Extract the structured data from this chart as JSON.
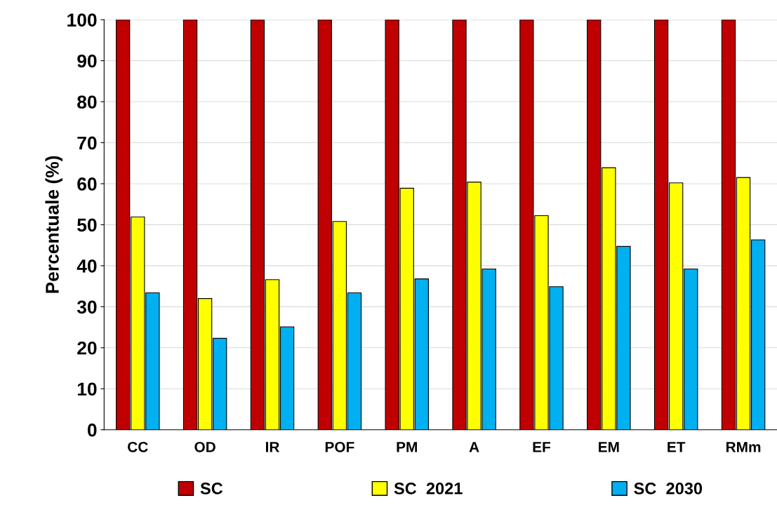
{
  "chart_data": {
    "type": "bar",
    "ylabel": "Percentuale (%)",
    "categories": [
      "CC",
      "OD",
      "IR",
      "POF",
      "PM",
      "A",
      "EF",
      "EM",
      "ET",
      "RMm"
    ],
    "series": [
      {
        "name": "SC",
        "color": "#c00000",
        "values": [
          100,
          100,
          100,
          100,
          100,
          100,
          100,
          100,
          100,
          100
        ]
      },
      {
        "name": "SC  2021",
        "color": "#ffff00",
        "values": [
          51.9,
          32.0,
          36.6,
          50.8,
          58.9,
          60.4,
          52.2,
          63.9,
          60.2,
          61.5
        ]
      },
      {
        "name": "SC  2030",
        "color": "#00b0f0",
        "values": [
          33.4,
          22.3,
          25.1,
          33.4,
          36.8,
          39.2,
          34.9,
          44.7,
          39.2,
          46.3
        ]
      }
    ],
    "ylim": [
      0,
      100
    ],
    "yticks": [
      0,
      10,
      20,
      30,
      40,
      50,
      60,
      70,
      80,
      90,
      100
    ],
    "grid": "y",
    "legend": "bottom"
  }
}
